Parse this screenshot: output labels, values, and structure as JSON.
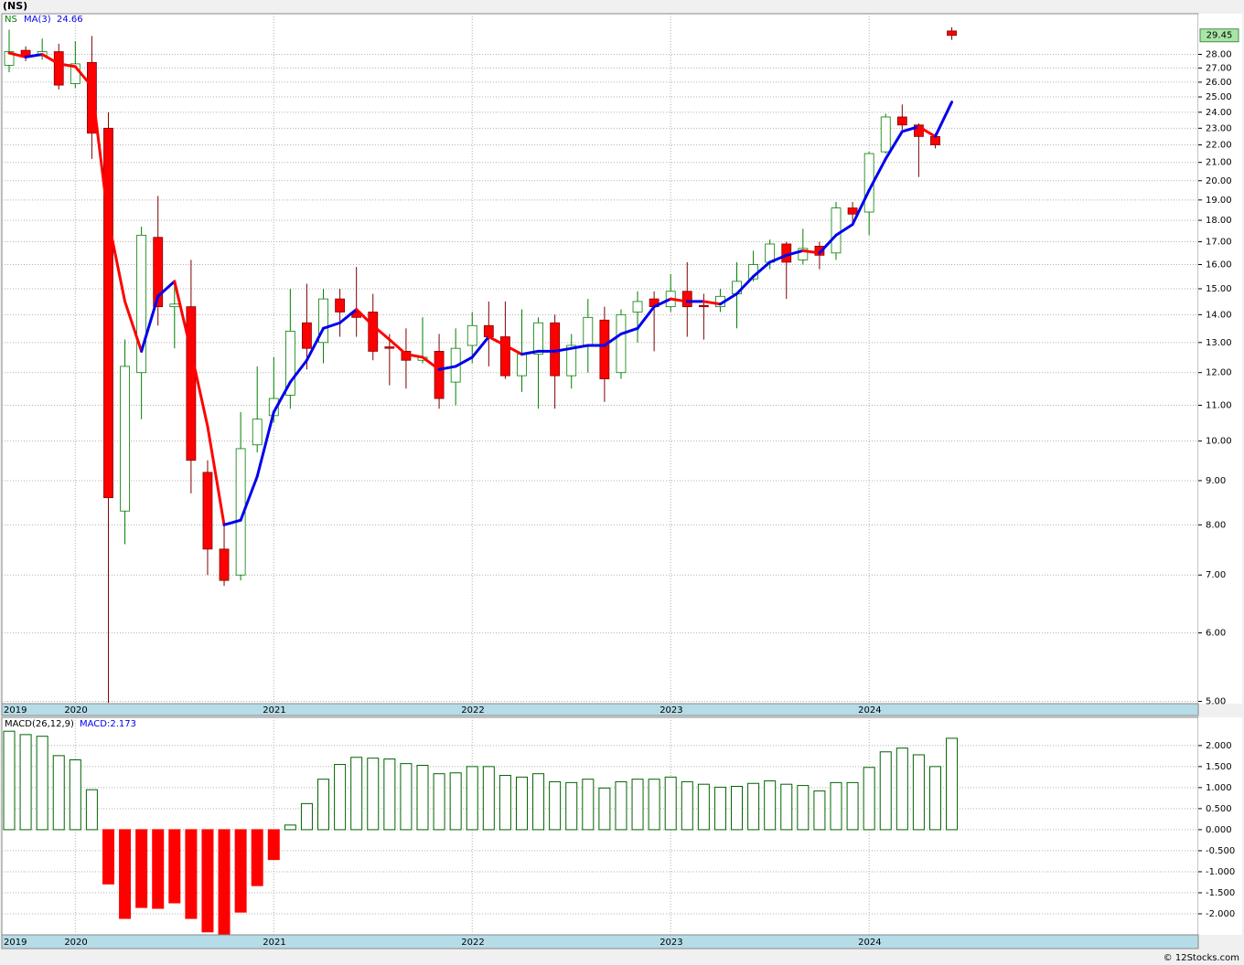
{
  "chart_data": [
    {
      "type": "candlestick",
      "title": "(NS)",
      "categories": [
        "2019",
        null,
        null,
        null,
        "2020",
        null,
        null,
        null,
        null,
        null,
        null,
        null,
        null,
        null,
        null,
        null,
        "2021",
        null,
        null,
        null,
        null,
        null,
        null,
        null,
        null,
        null,
        null,
        null,
        "2022",
        null,
        null,
        null,
        null,
        null,
        null,
        null,
        null,
        null,
        null,
        null,
        "2023",
        null,
        null,
        null,
        null,
        null,
        null,
        null,
        null,
        null,
        null,
        null,
        "2024",
        null,
        null,
        null,
        null,
        null
      ],
      "series": [
        {
          "name": "NS",
          "up_color": "#008000",
          "down_color": "#ff0000",
          "open": [
            27.2,
            28.3,
            27.9,
            28.2,
            25.9,
            27.4,
            23.0,
            8.3,
            12.0,
            17.2,
            14.3,
            14.3,
            9.2,
            7.5,
            7.0,
            9.9,
            10.7,
            11.3,
            13.7,
            13.0,
            14.6,
            14.1,
            14.1,
            12.85,
            12.7,
            12.4,
            12.7,
            11.7,
            12.9,
            13.6,
            13.2,
            11.9,
            12.6,
            13.7,
            11.9,
            12.9,
            13.8,
            12.0,
            14.1,
            14.6,
            14.3,
            14.9,
            14.35,
            14.3,
            14.8,
            15.4,
            16.1,
            16.9,
            16.2,
            16.8,
            16.5,
            18.6,
            18.4,
            21.6,
            23.7,
            23.2,
            22.5,
            29.8
          ],
          "high": [
            29.9,
            28.6,
            29.2,
            28.8,
            29.0,
            29.4,
            24.0,
            13.1,
            17.7,
            19.2,
            15.3,
            16.2,
            9.5,
            8.0,
            10.8,
            12.2,
            12.5,
            15.0,
            15.2,
            15.0,
            15.0,
            15.9,
            14.8,
            13.3,
            13.5,
            13.9,
            13.3,
            13.5,
            14.1,
            14.5,
            14.5,
            14.2,
            13.9,
            14.0,
            13.3,
            14.6,
            14.3,
            14.2,
            14.9,
            14.9,
            15.6,
            16.1,
            14.8,
            15.0,
            16.1,
            16.6,
            17.1,
            17.0,
            17.6,
            17.0,
            18.9,
            18.9,
            21.6,
            23.9,
            24.5,
            23.3,
            22.7,
            30.1
          ],
          "low": [
            26.7,
            27.5,
            27.6,
            25.5,
            25.6,
            21.2,
            4.98,
            7.6,
            10.6,
            13.6,
            12.8,
            8.7,
            7.0,
            6.8,
            6.9,
            9.7,
            10.5,
            10.9,
            12.1,
            12.3,
            13.2,
            13.2,
            12.4,
            11.6,
            11.5,
            12.3,
            10.9,
            11.0,
            12.3,
            12.2,
            11.8,
            11.4,
            10.9,
            10.9,
            11.5,
            12.0,
            11.1,
            11.8,
            13.0,
            12.7,
            14.1,
            13.2,
            13.1,
            14.1,
            13.5,
            15.3,
            15.8,
            14.6,
            16.0,
            15.8,
            16.2,
            17.9,
            17.3,
            21.5,
            22.9,
            20.2,
            21.8,
            29.1
          ],
          "close": [
            28.2,
            27.9,
            28.2,
            25.8,
            27.3,
            22.7,
            8.6,
            12.2,
            17.3,
            14.3,
            14.4,
            9.5,
            7.5,
            6.9,
            9.8,
            10.6,
            11.2,
            13.4,
            12.8,
            14.6,
            14.1,
            13.9,
            12.7,
            12.8,
            12.4,
            12.5,
            11.2,
            12.8,
            13.6,
            13.2,
            11.9,
            12.6,
            13.7,
            11.9,
            12.9,
            13.9,
            11.8,
            14.0,
            14.5,
            14.3,
            14.9,
            14.3,
            14.3,
            14.7,
            15.3,
            16.0,
            16.9,
            16.1,
            16.7,
            16.4,
            18.6,
            18.3,
            21.5,
            23.7,
            23.2,
            22.5,
            22.0,
            29.45
          ]
        }
      ],
      "ma": {
        "name": "MA(3)",
        "up_color": "#0000ee",
        "down_color": "#ff0000",
        "values": [
          28.1,
          27.8,
          28.0,
          27.3,
          27.1,
          25.7,
          18.0,
          14.5,
          12.7,
          14.7,
          15.3,
          12.7,
          10.4,
          8.0,
          8.1,
          9.1,
          10.8,
          11.7,
          12.4,
          13.5,
          13.7,
          14.2,
          13.6,
          13.1,
          12.6,
          12.5,
          12.1,
          12.2,
          12.5,
          13.2,
          12.9,
          12.6,
          12.7,
          12.7,
          12.8,
          12.9,
          12.9,
          13.3,
          13.5,
          14.3,
          14.6,
          14.5,
          14.5,
          14.4,
          14.8,
          15.5,
          16.1,
          16.4,
          16.6,
          16.5,
          17.3,
          17.8,
          19.5,
          21.2,
          22.8,
          23.1,
          22.5,
          24.66
        ]
      },
      "log_scale": true,
      "grid": true,
      "ylim": [
        4.97,
        31.2
      ],
      "yticks": [
        {
          "value": 5,
          "label": "5.00"
        },
        {
          "value": 6,
          "label": "6.00"
        },
        {
          "value": 7,
          "label": "7.00"
        },
        {
          "value": 8,
          "label": "8.00"
        },
        {
          "value": 9,
          "label": "9.00"
        },
        {
          "value": 10,
          "label": "10.00"
        },
        {
          "value": 11,
          "label": "11.00"
        },
        {
          "value": 12,
          "label": "12.00"
        },
        {
          "value": 13,
          "label": "13.00"
        },
        {
          "value": 14,
          "label": "14.00"
        },
        {
          "value": 15,
          "label": "15.00"
        },
        {
          "value": 16,
          "label": "16.00"
        },
        {
          "value": 17,
          "label": "17.00"
        },
        {
          "value": 18,
          "label": "18.00"
        },
        {
          "value": 19,
          "label": "19.00"
        },
        {
          "value": 20,
          "label": "20.00"
        },
        {
          "value": 21,
          "label": "21.00"
        },
        {
          "value": 22,
          "label": "22.00"
        },
        {
          "value": 23,
          "label": "23.00"
        },
        {
          "value": 24,
          "label": "24.00"
        },
        {
          "value": 25,
          "label": "25.00"
        },
        {
          "value": 26,
          "label": "26.00"
        },
        {
          "value": 27,
          "label": "27.00"
        },
        {
          "value": 28,
          "label": "28.00"
        }
      ],
      "last_price_color": "#a8e6a8"
    },
    {
      "type": "bar",
      "title": "MACD(26,12,9)",
      "categories": [
        "2019",
        null,
        null,
        null,
        "2020",
        null,
        null,
        null,
        null,
        null,
        null,
        null,
        null,
        null,
        null,
        null,
        "2021",
        null,
        null,
        null,
        null,
        null,
        null,
        null,
        null,
        null,
        null,
        null,
        "2022",
        null,
        null,
        null,
        null,
        null,
        null,
        null,
        null,
        null,
        null,
        null,
        "2023",
        null,
        null,
        null,
        null,
        null,
        null,
        null,
        null,
        null,
        null,
        null,
        "2024",
        null,
        null,
        null,
        null,
        null
      ],
      "series": [
        {
          "name": "MACD",
          "value_label": "MACD:2.173",
          "up_color": "#006400",
          "down_color": "#ff0000",
          "values": [
            2.34,
            2.26,
            2.22,
            1.76,
            1.66,
            0.95,
            -1.29,
            -2.11,
            -1.85,
            -1.87,
            -1.74,
            -2.11,
            -2.43,
            -2.48,
            -1.96,
            -1.33,
            -0.71,
            0.11,
            0.62,
            1.2,
            1.55,
            1.72,
            1.7,
            1.68,
            1.57,
            1.53,
            1.33,
            1.35,
            1.5,
            1.5,
            1.29,
            1.25,
            1.33,
            1.14,
            1.12,
            1.2,
            0.99,
            1.14,
            1.2,
            1.2,
            1.25,
            1.14,
            1.08,
            1.01,
            1.03,
            1.1,
            1.16,
            1.08,
            1.05,
            0.92,
            1.12,
            1.12,
            1.48,
            1.85,
            1.94,
            1.78,
            1.5,
            2.173
          ]
        }
      ],
      "grid": true,
      "ylim": [
        -2.5,
        2.67
      ],
      "yticks": [
        {
          "value": 2,
          "label": "2.000"
        },
        {
          "value": 1.5,
          "label": "1.500"
        },
        {
          "value": 1,
          "label": "1.000"
        },
        {
          "value": 0.5,
          "label": "0.500"
        },
        {
          "value": 0,
          "label": "0.000"
        },
        {
          "value": -0.5,
          "label": "-0.500"
        },
        {
          "value": -1,
          "label": "-1.000"
        },
        {
          "value": -1.5,
          "label": "-1.500"
        },
        {
          "value": -2,
          "label": "-2.000"
        }
      ]
    }
  ],
  "footer": "© 12Stocks.com"
}
